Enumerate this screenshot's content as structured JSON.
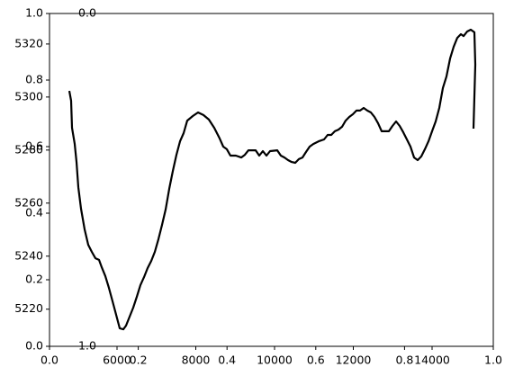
{
  "chart_data": [
    {
      "type": "frame",
      "xlim": [
        0,
        1
      ],
      "ylim": [
        0,
        1
      ],
      "xticks": [
        {
          "value": 0,
          "label": "0.0"
        },
        0.2,
        0.4,
        0.6,
        0.8,
        {
          "value": 1,
          "label": "1.0"
        }
      ],
      "yticks": [
        {
          "value": 0,
          "label": "0.0"
        },
        0.2,
        0.4,
        0.6,
        0.8,
        {
          "value": 1,
          "label": "1.0"
        }
      ]
    },
    {
      "type": "line",
      "color": "#000000",
      "xlim": [
        4286,
        15554
      ],
      "ylim": [
        5206,
        5331.5
      ],
      "xticks": [
        6000,
        8000,
        10000,
        12000,
        14000
      ],
      "yticks": [
        5220,
        5240,
        5260,
        5280,
        5300,
        5320
      ],
      "x": [
        4789,
        4835,
        4857,
        4926,
        4972,
        5017,
        5086,
        5177,
        5269,
        5360,
        5452,
        5543,
        5612,
        5703,
        5794,
        5886,
        5977,
        6069,
        6160,
        6229,
        6320,
        6412,
        6503,
        6594,
        6686,
        6777,
        6869,
        6960,
        7052,
        7143,
        7234,
        7326,
        7417,
        7509,
        7600,
        7692,
        7783,
        7920,
        8057,
        8194,
        8332,
        8469,
        8606,
        8697,
        8789,
        8880,
        9017,
        9154,
        9246,
        9337,
        9520,
        9611,
        9703,
        9794,
        9886,
        10069,
        10160,
        10251,
        10343,
        10434,
        10526,
        10617,
        10709,
        10800,
        10891,
        10983,
        11120,
        11257,
        11349,
        11440,
        11531,
        11623,
        11714,
        11806,
        11897,
        11988,
        12080,
        12171,
        12263,
        12354,
        12446,
        12537,
        12628,
        12720,
        12903,
        12994,
        13086,
        13177,
        13268,
        13360,
        13451,
        13543,
        13634,
        13726,
        13817,
        13908,
        14000,
        14091,
        14183,
        14274,
        14366,
        14457,
        14548,
        14640,
        14731,
        14800,
        14891,
        14983,
        15074,
        15097,
        15051
      ],
      "series": [
        {
          "values": [
            5302.3,
            5298.6,
            5288.4,
            5282.3,
            5275.5,
            5266.0,
            5257.9,
            5250.1,
            5244.3,
            5241.6,
            5239.2,
            5238.6,
            5235.8,
            5232.5,
            5228.0,
            5223.0,
            5217.9,
            5212.8,
            5212.4,
            5213.8,
            5217.2,
            5220.6,
            5224.7,
            5229.1,
            5232.1,
            5235.5,
            5238.2,
            5241.6,
            5246.4,
            5251.8,
            5257.6,
            5265.4,
            5272.1,
            5278.2,
            5283.3,
            5286.4,
            5291.1,
            5292.8,
            5294.2,
            5293.2,
            5291.5,
            5288.4,
            5284.4,
            5281.3,
            5280.3,
            5277.9,
            5277.9,
            5277.2,
            5278.2,
            5279.9,
            5279.9,
            5277.9,
            5279.6,
            5277.9,
            5279.6,
            5279.9,
            5277.9,
            5277.2,
            5276.2,
            5275.5,
            5275.2,
            5276.6,
            5277.2,
            5279.3,
            5281.3,
            5282.3,
            5283.3,
            5284.0,
            5285.7,
            5285.7,
            5287.1,
            5287.7,
            5288.8,
            5291.1,
            5292.5,
            5293.5,
            5294.9,
            5294.9,
            5295.9,
            5294.9,
            5294.2,
            5292.5,
            5290.1,
            5287.1,
            5287.1,
            5289.1,
            5290.8,
            5289.1,
            5286.7,
            5284.0,
            5281.3,
            5277.2,
            5276.2,
            5277.6,
            5280.3,
            5283.3,
            5287.1,
            5290.8,
            5295.9,
            5303.4,
            5307.8,
            5314.5,
            5319.0,
            5322.3,
            5323.7,
            5323.0,
            5324.7,
            5325.4,
            5324.4,
            5312.2,
            5288.1
          ]
        }
      ]
    },
    {
      "type": "inset-axis",
      "ylim": [
        1,
        0
      ],
      "yticks": [
        {
          "value": 0,
          "label": "0.0"
        },
        {
          "value": 1,
          "label": "1.0"
        }
      ]
    }
  ]
}
